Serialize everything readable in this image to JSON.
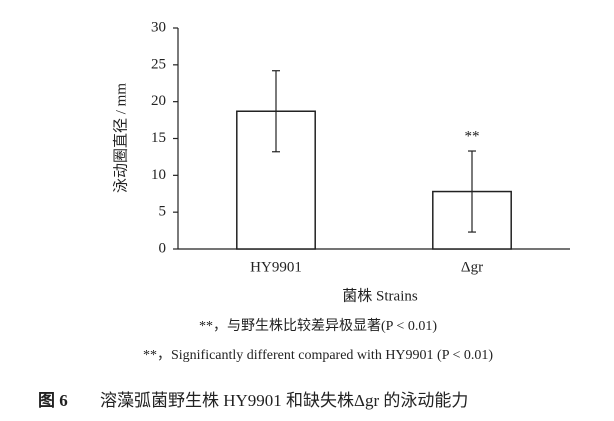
{
  "chart_data": {
    "type": "bar",
    "ylabel": "泳动圈直径 / mm",
    "xlabel": "菌株 Strains",
    "categories": [
      "HY9901",
      "Δgr"
    ],
    "values": [
      18.7,
      7.8
    ],
    "errors": [
      5.5,
      5.5
    ],
    "significance_labels": [
      null,
      "**"
    ],
    "color": "#ffffff",
    "edgecolor": "#222222",
    "ylim": [
      0,
      30
    ],
    "yticks": [
      0,
      5,
      10,
      15,
      20,
      25,
      30
    ],
    "grid": false,
    "notes": [
      "**，与野生株比较差异极显著(P < 0.01)",
      "**，Significantly different compared with HY9901 (P < 0.01)"
    ],
    "caption_label": "图 6",
    "caption": "溶藻弧菌野生株 HY9901 和缺失株Δgr 的泳动能力"
  }
}
